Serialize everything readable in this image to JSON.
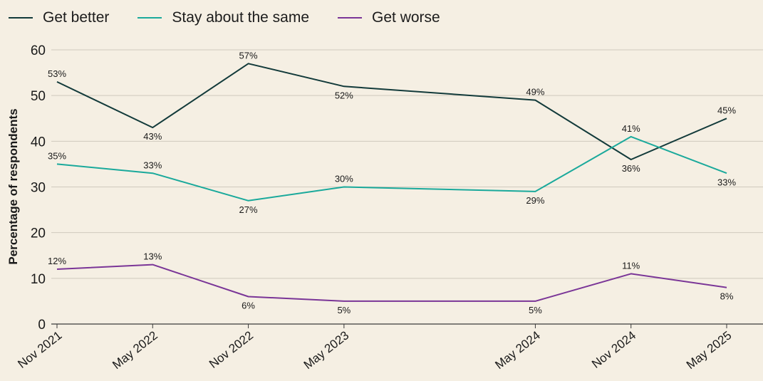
{
  "chart_data": {
    "type": "line",
    "x": [
      "Nov 2021",
      "May 2022",
      "Nov 2022",
      "May 2023",
      "May 2024",
      "Nov 2024",
      "May 2025"
    ],
    "x_dates": [
      "2021-11",
      "2022-05",
      "2022-11",
      "2023-05",
      "2024-05",
      "2024-11",
      "2025-05"
    ],
    "series": [
      {
        "name": "Get better",
        "color": "#123a3a",
        "values": [
          53,
          43,
          57,
          52,
          49,
          36,
          45
        ]
      },
      {
        "name": "Stay about the same",
        "color": "#1aa99b",
        "values": [
          35,
          33,
          27,
          30,
          29,
          41,
          33
        ]
      },
      {
        "name": "Get worse",
        "color": "#7a3597",
        "values": [
          12,
          13,
          6,
          5,
          5,
          11,
          8
        ]
      }
    ],
    "ylabel": "Percentage of respondents",
    "ylim": [
      0,
      60
    ],
    "yticks": [
      "0",
      "10",
      "20",
      "30",
      "40",
      "50",
      "60"
    ],
    "value_suffix": "%",
    "grid": true,
    "legend": "top-left",
    "label_placement": [
      [
        "above",
        "below",
        "above",
        "below",
        "above",
        "below",
        "above"
      ],
      [
        "above",
        "above",
        "below",
        "above",
        "below",
        "above",
        "below"
      ],
      [
        "above",
        "above",
        "below",
        "below",
        "below",
        "above",
        "below"
      ]
    ]
  }
}
